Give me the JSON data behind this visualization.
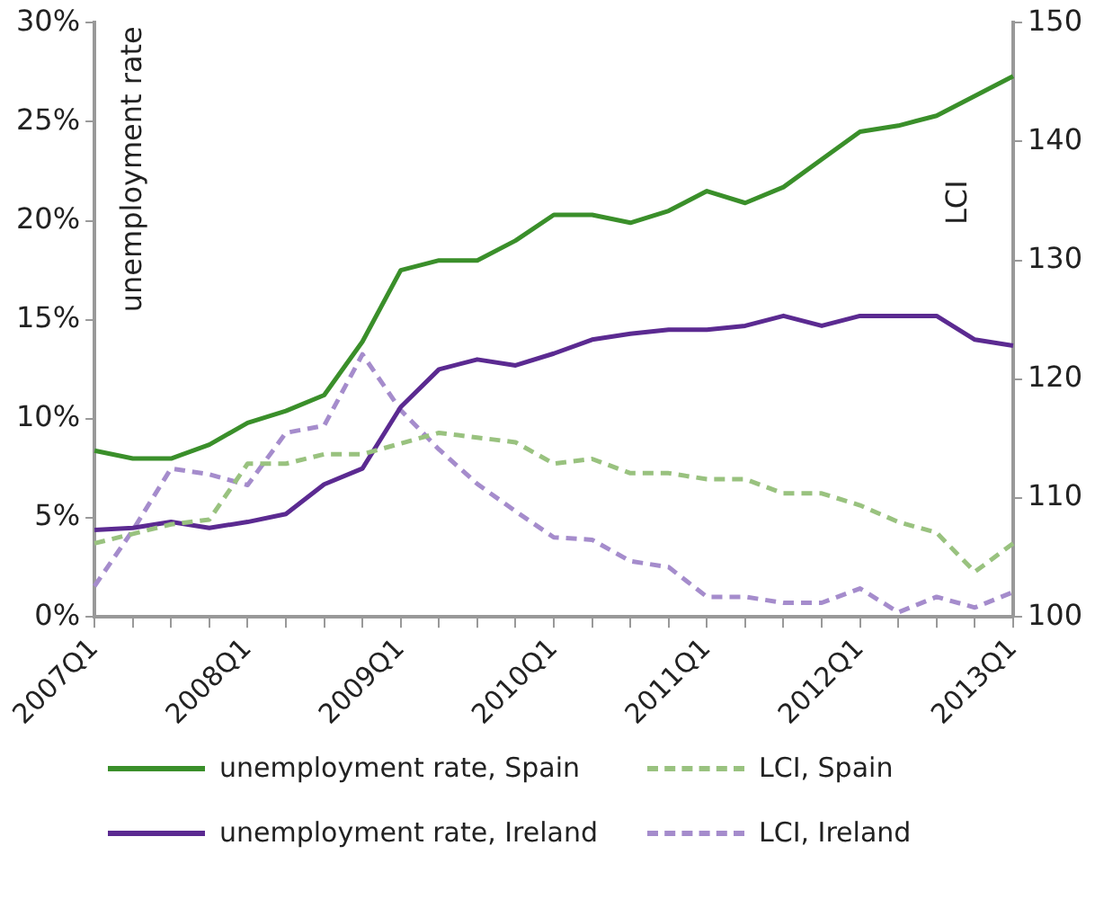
{
  "chart_data": {
    "type": "line",
    "ylabel": "unemployment rate",
    "y2label": "LCI",
    "categories": [
      "2007Q1",
      null,
      null,
      null,
      "2008Q1",
      null,
      null,
      null,
      "2009Q1",
      null,
      null,
      null,
      "2010Q1",
      null,
      null,
      null,
      "2011Q1",
      null,
      null,
      null,
      "2012Q1",
      null,
      null,
      null,
      "2013Q1"
    ],
    "ylim": [
      0,
      30
    ],
    "yticks": [
      {
        "value": 0,
        "label": "0%"
      },
      {
        "value": 5,
        "label": "5%"
      },
      {
        "value": 10,
        "label": "10%"
      },
      {
        "value": 15,
        "label": "15%"
      },
      {
        "value": 20,
        "label": "20%"
      },
      {
        "value": 25,
        "label": "25%"
      },
      {
        "value": 30,
        "label": "30%"
      }
    ],
    "y2lim": [
      100,
      150
    ],
    "y2ticks": [
      100,
      110,
      120,
      130,
      140,
      150
    ],
    "grid": false,
    "legend": "bottom",
    "marker": "none",
    "series": [
      {
        "name": "unemployment rate, Spain",
        "color": "#3a8f2a",
        "line_style": "solid",
        "values": [
          8.4,
          8.0,
          8.0,
          8.7,
          9.8,
          10.4,
          11.2,
          13.9,
          17.5,
          18.0,
          18.0,
          19.0,
          20.3,
          20.3,
          19.9,
          20.5,
          21.5,
          20.9,
          21.7,
          23.1,
          24.5,
          24.8,
          25.3,
          26.3,
          27.3
        ]
      },
      {
        "name": "LCI, Spain",
        "color": "#99c27f",
        "line_style": "dashed",
        "axis": "y2",
        "values": [
          106.2,
          107.0,
          107.8,
          108.2,
          112.9,
          112.9,
          113.7,
          113.7,
          114.6,
          115.5,
          115.1,
          114.7,
          112.9,
          113.3,
          112.1,
          112.1,
          111.6,
          111.6,
          110.4,
          110.4,
          109.4,
          108.0,
          107.1,
          103.8,
          106.2
        ]
      },
      {
        "name": "unemployment rate, Ireland",
        "color": "#5b2a91",
        "line_style": "solid",
        "values": [
          4.4,
          4.5,
          4.8,
          4.5,
          4.8,
          5.2,
          6.7,
          7.5,
          10.6,
          12.5,
          13.0,
          12.7,
          13.3,
          14.0,
          14.3,
          14.5,
          14.5,
          14.7,
          15.2,
          14.7,
          15.2,
          15.2,
          15.2,
          14.0,
          13.7
        ]
      },
      {
        "name": "LCI, Ireland",
        "color": "#a58ccc",
        "line_style": "dashed",
        "axis": "y2",
        "values": [
          102.6,
          107.3,
          112.5,
          112.0,
          111.1,
          115.5,
          116.1,
          122.1,
          117.4,
          114.1,
          111.2,
          108.9,
          106.7,
          106.5,
          104.7,
          104.2,
          101.7,
          101.7,
          101.2,
          101.2,
          102.4,
          100.4,
          101.7,
          100.8,
          102.1
        ]
      }
    ]
  }
}
